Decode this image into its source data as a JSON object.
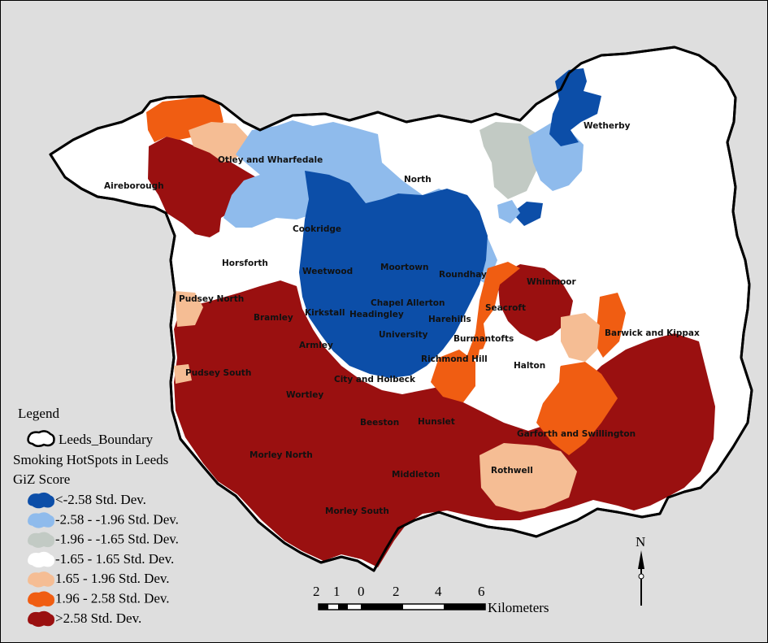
{
  "places": [
    {
      "name": "Aireborough"
    },
    {
      "name": "Otley and Wharfedale"
    },
    {
      "name": "North"
    },
    {
      "name": "Wetherby"
    },
    {
      "name": "Cookridge"
    },
    {
      "name": "Horsforth"
    },
    {
      "name": "Weetwood"
    },
    {
      "name": "Moortown"
    },
    {
      "name": "Roundhay"
    },
    {
      "name": "Whinmoor"
    },
    {
      "name": "Pudsey North"
    },
    {
      "name": "Bramley"
    },
    {
      "name": "Kirkstall"
    },
    {
      "name": "Chapel Allerton"
    },
    {
      "name": "Headingley"
    },
    {
      "name": "Harehills"
    },
    {
      "name": "Seacroft"
    },
    {
      "name": "University"
    },
    {
      "name": "Burmantofts"
    },
    {
      "name": "Barwick and Kippax"
    },
    {
      "name": "Armley"
    },
    {
      "name": "Halton"
    },
    {
      "name": "Pudsey South"
    },
    {
      "name": "City and Holbeck"
    },
    {
      "name": "Richmond Hill"
    },
    {
      "name": "Wortley"
    },
    {
      "name": "Beeston"
    },
    {
      "name": "Hunslet"
    },
    {
      "name": "Garforth and Swillington"
    },
    {
      "name": "Morley North"
    },
    {
      "name": "Middleton"
    },
    {
      "name": "Rothwell"
    },
    {
      "name": "Morley South"
    }
  ],
  "legend": {
    "title": "Legend",
    "boundary_label": "Leeds_Boundary",
    "layer_title": "Smoking HotSpots in Leeds",
    "field_title": "GiZ Score",
    "classes": [
      {
        "label": "<-2.58 Std. Dev.",
        "color": "#0c4ea8"
      },
      {
        "label": "-2.58 - -1.96 Std. Dev.",
        "color": "#8fbbec"
      },
      {
        "label": "-1.96 - -1.65 Std. Dev.",
        "color": "#c2cac4"
      },
      {
        "label": "-1.65 - 1.65 Std. Dev.",
        "color": "#ffffff"
      },
      {
        "label": "1.65 - 1.96 Std. Dev.",
        "color": "#f5bd94"
      },
      {
        "label": "1.96 - 2.58 Std. Dev.",
        "color": "#f05d12"
      },
      {
        "label": ">2.58 Std. Dev.",
        "color": "#9a1010"
      }
    ]
  },
  "scale_bar": {
    "ticks": [
      "2",
      "1",
      "0",
      "2",
      "4",
      "6"
    ],
    "unit": "Kilometers"
  },
  "north_arrow": {
    "label": "N"
  }
}
